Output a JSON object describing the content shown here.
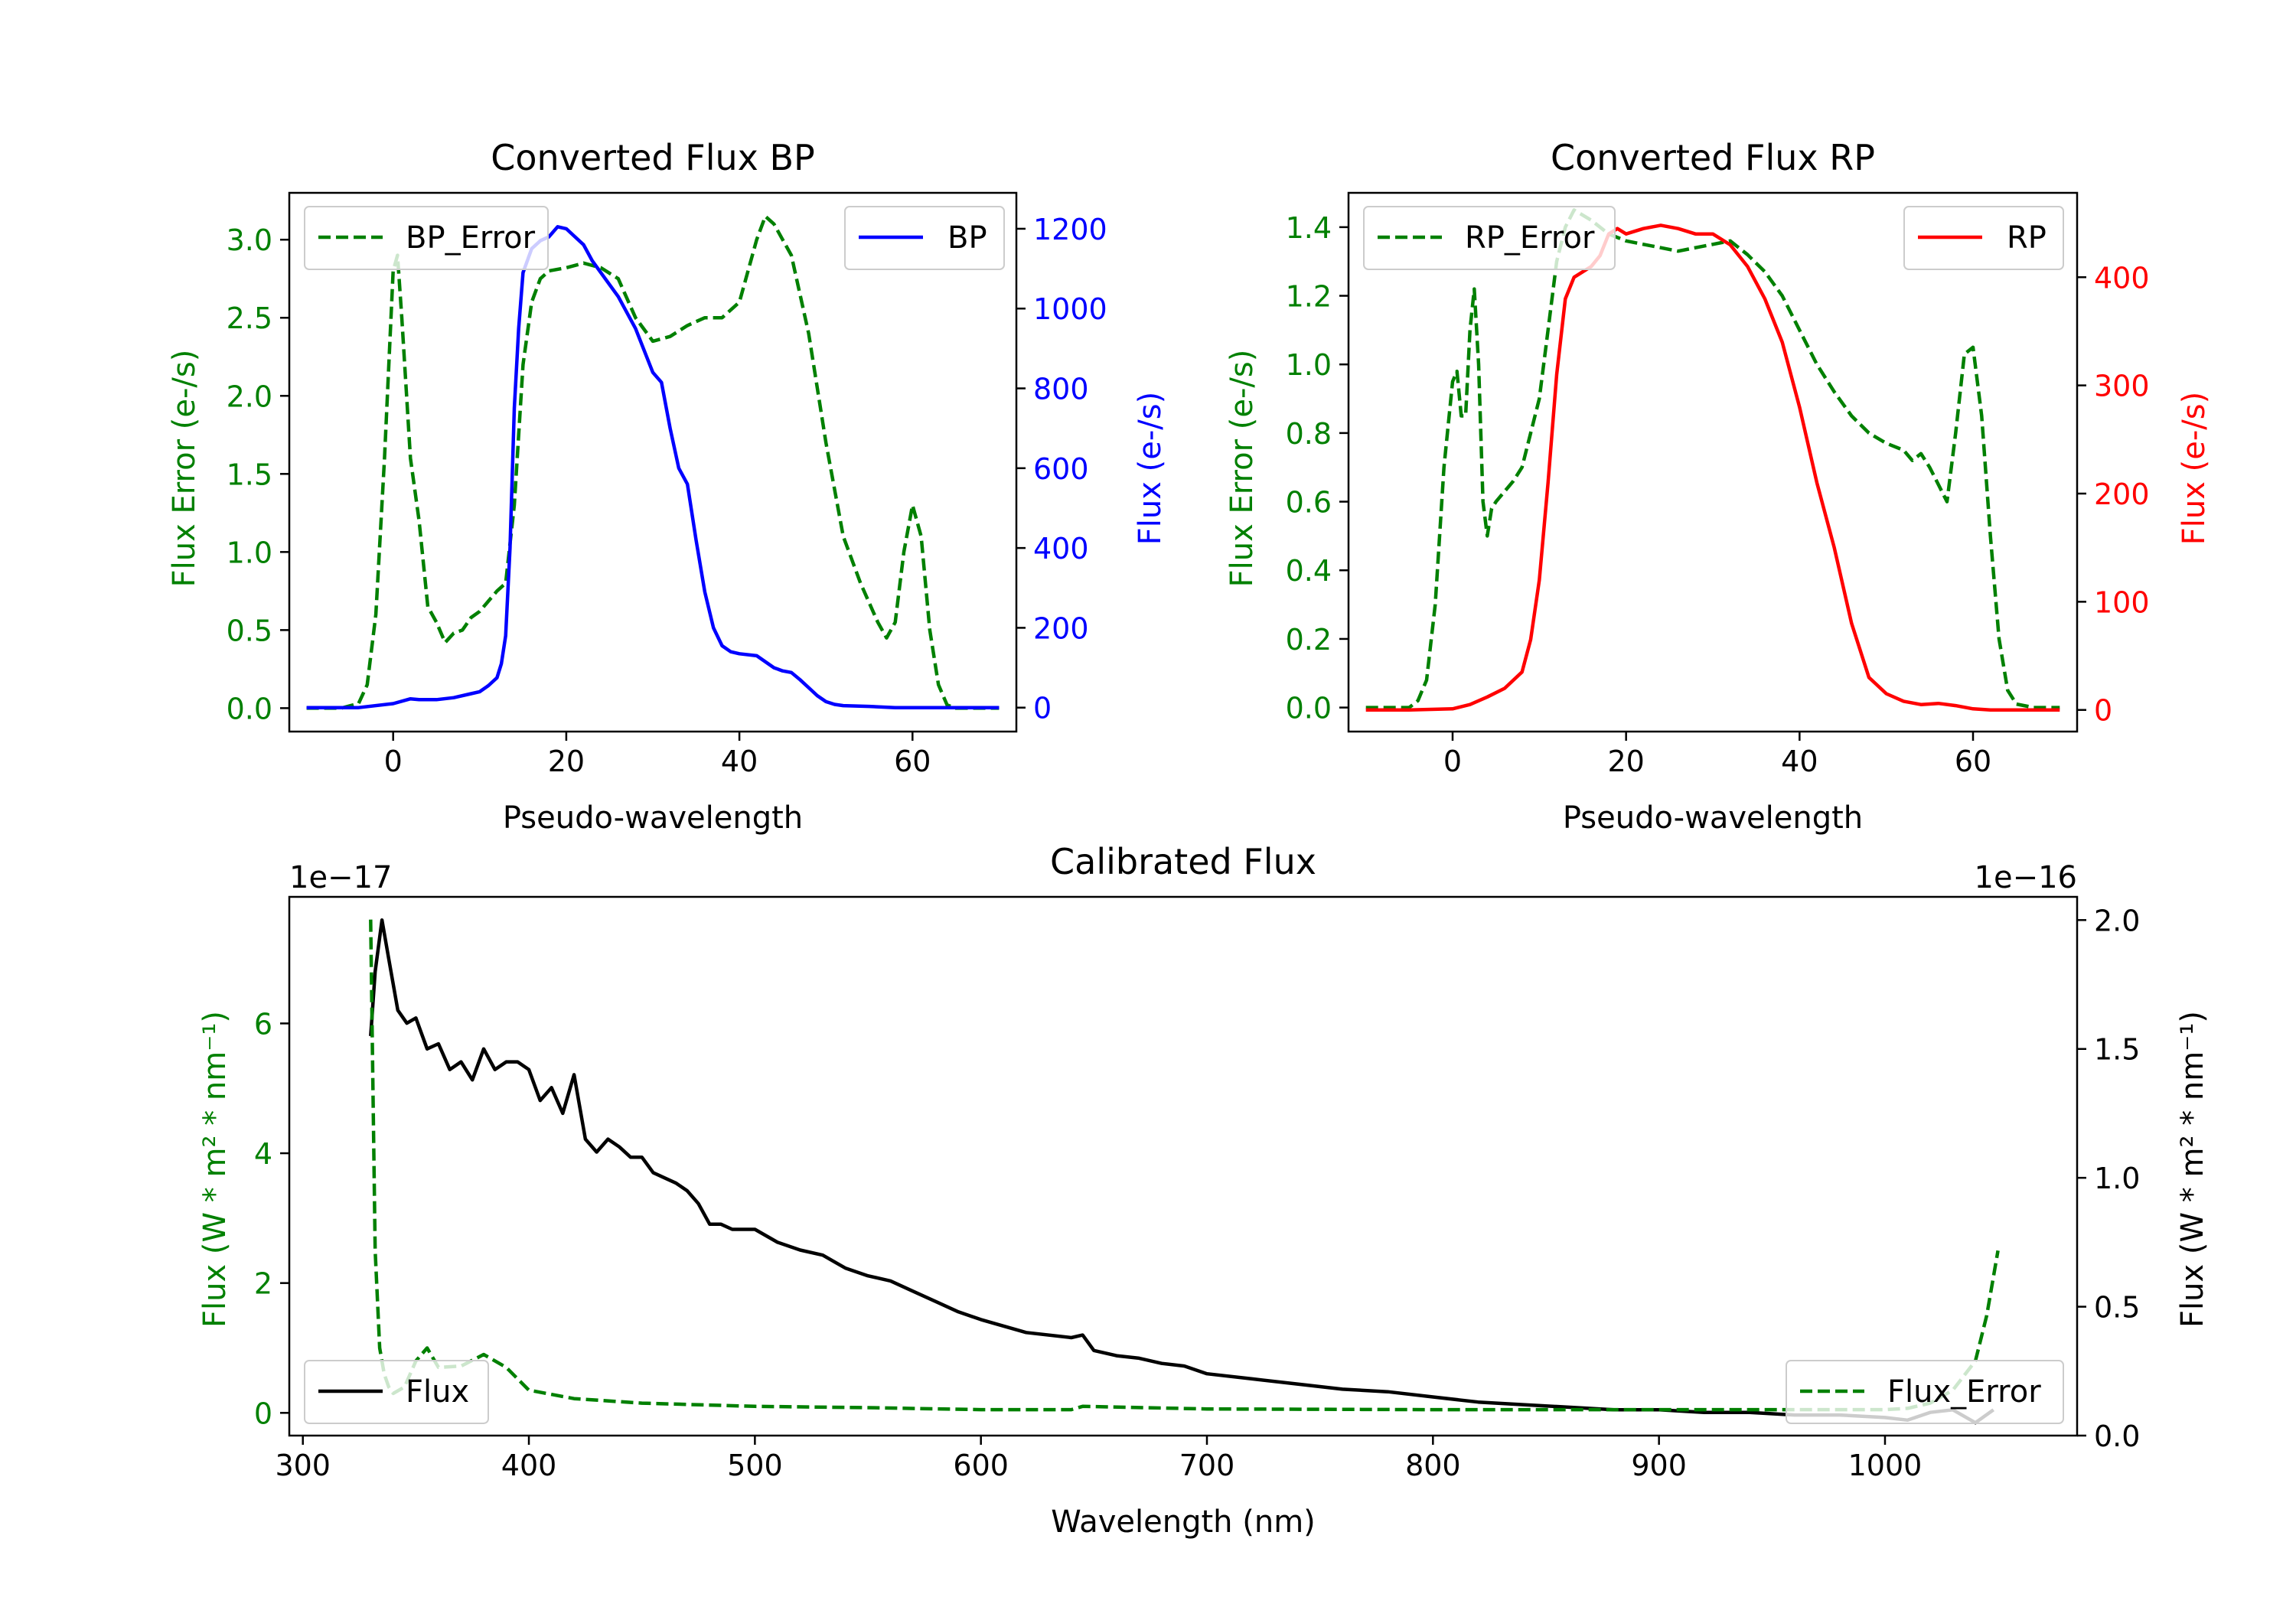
{
  "colors": {
    "green": "#008000",
    "blue": "#0000ff",
    "red": "#ff0000",
    "black": "#000000",
    "axis": "#000000",
    "legend_edge": "#cccccc"
  },
  "chart_data": [
    {
      "id": "bp",
      "type": "line",
      "title": "Converted Flux BP",
      "xlabel": "Pseudo-wavelength",
      "xlim": [
        -12,
        72
      ],
      "xticks": [
        0,
        20,
        40,
        60
      ],
      "xticklabels": [
        "0",
        "20",
        "40",
        "60"
      ],
      "left_axis": {
        "label": "Flux Error (e-/s)",
        "color": "green",
        "ylim": [
          -0.15,
          3.3
        ],
        "ticks": [
          0.0,
          0.5,
          1.0,
          1.5,
          2.0,
          2.5,
          3.0
        ],
        "ticklabels": [
          "0.0",
          "0.5",
          "1.0",
          "1.5",
          "2.0",
          "2.5",
          "3.0"
        ]
      },
      "right_axis": {
        "label": "Flux (e-/s)",
        "color": "blue",
        "ylim": [
          -60,
          1290
        ],
        "ticks": [
          0,
          200,
          400,
          600,
          800,
          1000,
          1200
        ],
        "ticklabels": [
          "0",
          "200",
          "400",
          "600",
          "800",
          "1000",
          "1200"
        ]
      },
      "series": [
        {
          "name": "BP_Error",
          "axis": "left",
          "color": "green",
          "style": "dashed",
          "x": [
            -10,
            -6,
            -4,
            -3,
            -2,
            -1,
            0,
            0.5,
            1,
            2,
            3,
            4,
            5,
            6,
            7,
            8,
            9,
            10,
            12,
            13,
            14,
            15,
            16,
            17,
            18,
            20,
            22,
            24,
            26,
            28,
            30,
            32,
            34,
            36,
            38,
            40,
            42,
            43,
            44,
            46,
            48,
            50,
            52,
            54,
            56,
            57,
            58,
            59,
            60,
            61,
            62,
            63,
            64,
            65,
            67,
            70
          ],
          "values": [
            0,
            0,
            0.03,
            0.15,
            0.6,
            1.6,
            2.8,
            2.9,
            2.5,
            1.6,
            1.2,
            0.65,
            0.55,
            0.42,
            0.48,
            0.5,
            0.58,
            0.62,
            0.75,
            0.8,
            1.3,
            2.2,
            2.6,
            2.75,
            2.8,
            2.82,
            2.85,
            2.82,
            2.75,
            2.5,
            2.35,
            2.38,
            2.45,
            2.5,
            2.5,
            2.6,
            3.0,
            3.15,
            3.1,
            2.9,
            2.4,
            1.7,
            1.1,
            0.8,
            0.55,
            0.45,
            0.55,
            1.0,
            1.3,
            1.1,
            0.5,
            0.15,
            0.02,
            0,
            0,
            0
          ]
        },
        {
          "name": "BP",
          "axis": "right",
          "color": "blue",
          "style": "solid",
          "x": [
            -10,
            -4,
            0,
            2,
            3,
            5,
            7,
            9,
            10,
            11,
            12,
            12.5,
            13,
            13.5,
            14,
            14.5,
            15,
            16,
            17,
            18,
            19,
            20,
            21,
            22,
            23,
            24,
            26,
            28,
            30,
            31,
            32,
            33,
            34,
            35,
            36,
            37,
            38,
            39,
            40,
            42,
            44,
            45,
            46,
            47,
            48,
            49,
            50,
            51,
            52,
            55,
            58,
            60,
            62,
            64,
            70
          ],
          "values": [
            0,
            0,
            10,
            22,
            20,
            20,
            25,
            35,
            40,
            55,
            75,
            110,
            180,
            400,
            750,
            950,
            1090,
            1150,
            1170,
            1180,
            1205,
            1200,
            1180,
            1160,
            1120,
            1090,
            1030,
            950,
            840,
            815,
            700,
            600,
            560,
            420,
            290,
            200,
            155,
            140,
            135,
            130,
            100,
            92,
            88,
            70,
            50,
            30,
            15,
            8,
            5,
            3,
            0,
            0,
            0,
            0,
            0
          ]
        }
      ],
      "legends": [
        {
          "loc": "upper-left",
          "entry": "BP_Error"
        },
        {
          "loc": "upper-right",
          "entry": "BP"
        }
      ]
    },
    {
      "id": "rp",
      "type": "line",
      "title": "Converted Flux RP",
      "xlabel": "Pseudo-wavelength",
      "xlim": [
        -12,
        72
      ],
      "xticks": [
        0,
        20,
        40,
        60
      ],
      "xticklabels": [
        "0",
        "20",
        "40",
        "60"
      ],
      "left_axis": {
        "label": "Flux Error (e-/s)",
        "color": "green",
        "ylim": [
          -0.07,
          1.5
        ],
        "ticks": [
          0.0,
          0.2,
          0.4,
          0.6,
          0.8,
          1.0,
          1.2,
          1.4
        ],
        "ticklabels": [
          "0.0",
          "0.2",
          "0.4",
          "0.6",
          "0.8",
          "1.0",
          "1.2",
          "1.4"
        ]
      },
      "right_axis": {
        "label": "Flux (e-/s)",
        "color": "red",
        "ylim": [
          -20,
          478
        ],
        "ticks": [
          0,
          100,
          200,
          300,
          400
        ],
        "ticklabels": [
          "0",
          "100",
          "200",
          "300",
          "400"
        ]
      },
      "series": [
        {
          "name": "RP_Error",
          "axis": "left",
          "color": "green",
          "style": "dashed",
          "x": [
            -10,
            -5,
            -4,
            -3,
            -2,
            -1,
            0,
            0.5,
            1,
            1.5,
            2,
            2.5,
            3,
            3.5,
            4,
            4.5,
            5,
            6,
            7,
            8,
            9,
            10,
            11,
            12,
            13,
            14,
            16,
            18,
            20,
            22,
            24,
            26,
            28,
            30,
            32,
            34,
            36,
            38,
            40,
            42,
            44,
            46,
            48,
            50,
            52,
            53,
            54,
            55,
            56,
            57,
            58,
            59,
            60,
            61,
            62,
            63,
            64,
            65,
            67,
            70
          ],
          "values": [
            0,
            0,
            0.02,
            0.08,
            0.3,
            0.7,
            0.95,
            0.98,
            0.85,
            0.85,
            1.1,
            1.22,
            1.0,
            0.6,
            0.5,
            0.58,
            0.6,
            0.63,
            0.66,
            0.7,
            0.8,
            0.9,
            1.1,
            1.3,
            1.4,
            1.45,
            1.42,
            1.38,
            1.36,
            1.35,
            1.34,
            1.33,
            1.34,
            1.35,
            1.36,
            1.32,
            1.27,
            1.2,
            1.1,
            1.0,
            0.92,
            0.85,
            0.8,
            0.77,
            0.75,
            0.72,
            0.74,
            0.7,
            0.65,
            0.6,
            0.8,
            1.03,
            1.05,
            0.85,
            0.5,
            0.2,
            0.05,
            0.01,
            0,
            0
          ]
        },
        {
          "name": "RP",
          "axis": "right",
          "color": "red",
          "style": "solid",
          "x": [
            -10,
            -5,
            0,
            2,
            4,
            6,
            8,
            9,
            10,
            11,
            12,
            13,
            14,
            15,
            16,
            17,
            18,
            19,
            20,
            22,
            24,
            26,
            28,
            30,
            32,
            34,
            36,
            38,
            40,
            42,
            44,
            46,
            48,
            50,
            52,
            54,
            56,
            58,
            60,
            62,
            70
          ],
          "values": [
            0,
            0,
            1,
            5,
            12,
            20,
            35,
            65,
            120,
            210,
            310,
            380,
            400,
            405,
            410,
            420,
            440,
            445,
            440,
            445,
            448,
            445,
            440,
            440,
            430,
            410,
            380,
            340,
            280,
            210,
            150,
            80,
            30,
            15,
            8,
            5,
            6,
            4,
            1,
            0,
            0
          ]
        }
      ],
      "legends": [
        {
          "loc": "upper-left",
          "entry": "RP_Error"
        },
        {
          "loc": "upper-right",
          "entry": "RP"
        }
      ]
    },
    {
      "id": "cal",
      "type": "line",
      "title": "Calibrated Flux",
      "xlabel": "Wavelength (nm)",
      "xlim": [
        294,
        1085
      ],
      "xticks": [
        300,
        400,
        500,
        600,
        700,
        800,
        900,
        1000
      ],
      "xticklabels": [
        "300",
        "400",
        "500",
        "600",
        "700",
        "800",
        "900",
        "1000"
      ],
      "left_axis": {
        "label": "Flux (W * m² * nm⁻¹)",
        "color": "green",
        "offset_text": "1e−17",
        "ylim": [
          -0.35,
          7.95
        ],
        "ticks": [
          0,
          2,
          4,
          6
        ],
        "ticklabels": [
          "0",
          "2",
          "4",
          "6"
        ]
      },
      "right_axis": {
        "label": "Flux (W * m² * nm⁻¹)",
        "color": "black",
        "offset_text": "1e−16",
        "ylim": [
          0.0,
          2.09
        ],
        "ticks": [
          0.0,
          0.5,
          1.0,
          1.5,
          2.0
        ],
        "ticklabels": [
          "0.0",
          "0.5",
          "1.0",
          "1.5",
          "2.0"
        ]
      },
      "series": [
        {
          "name": "Flux",
          "axis": "right",
          "color": "black",
          "style": "solid",
          "x": [
            330,
            332,
            335,
            338,
            342,
            346,
            350,
            355,
            360,
            365,
            370,
            375,
            380,
            385,
            390,
            395,
            400,
            405,
            410,
            415,
            420,
            425,
            430,
            435,
            440,
            445,
            450,
            455,
            460,
            465,
            470,
            475,
            480,
            485,
            490,
            500,
            510,
            520,
            530,
            540,
            550,
            560,
            570,
            580,
            590,
            600,
            620,
            640,
            645,
            650,
            660,
            670,
            680,
            690,
            700,
            720,
            740,
            760,
            780,
            800,
            820,
            840,
            860,
            880,
            900,
            920,
            940,
            960,
            980,
            1000,
            1010,
            1020,
            1030,
            1040,
            1048
          ],
          "values": [
            1.55,
            1.8,
            2.0,
            1.85,
            1.65,
            1.6,
            1.62,
            1.5,
            1.52,
            1.42,
            1.45,
            1.38,
            1.5,
            1.42,
            1.45,
            1.45,
            1.42,
            1.3,
            1.35,
            1.25,
            1.4,
            1.15,
            1.1,
            1.15,
            1.12,
            1.08,
            1.08,
            1.02,
            1.0,
            0.98,
            0.95,
            0.9,
            0.82,
            0.82,
            0.8,
            0.8,
            0.75,
            0.72,
            0.7,
            0.65,
            0.62,
            0.6,
            0.56,
            0.52,
            0.48,
            0.45,
            0.4,
            0.38,
            0.39,
            0.33,
            0.31,
            0.3,
            0.28,
            0.27,
            0.24,
            0.22,
            0.2,
            0.18,
            0.17,
            0.15,
            0.13,
            0.12,
            0.11,
            0.1,
            0.1,
            0.09,
            0.09,
            0.08,
            0.08,
            0.07,
            0.06,
            0.09,
            0.1,
            0.05,
            0.1
          ]
        },
        {
          "name": "Flux_Error",
          "axis": "left",
          "color": "green",
          "style": "dashed",
          "x": [
            330,
            331,
            332,
            334,
            336,
            338,
            340,
            345,
            350,
            355,
            360,
            370,
            380,
            390,
            400,
            420,
            450,
            500,
            550,
            600,
            640,
            645,
            700,
            800,
            900,
            950,
            1000,
            1010,
            1020,
            1030,
            1040,
            1045,
            1050
          ],
          "values": [
            7.6,
            5.0,
            2.5,
            1.0,
            0.6,
            0.4,
            0.3,
            0.4,
            0.8,
            1.0,
            0.7,
            0.72,
            0.9,
            0.7,
            0.35,
            0.22,
            0.15,
            0.1,
            0.08,
            0.05,
            0.05,
            0.1,
            0.06,
            0.05,
            0.05,
            0.05,
            0.05,
            0.07,
            0.15,
            0.35,
            0.8,
            1.5,
            2.5
          ]
        }
      ],
      "legends": [
        {
          "loc": "lower-left",
          "entry": "Flux"
        },
        {
          "loc": "lower-right",
          "entry": "Flux_Error"
        }
      ]
    }
  ]
}
